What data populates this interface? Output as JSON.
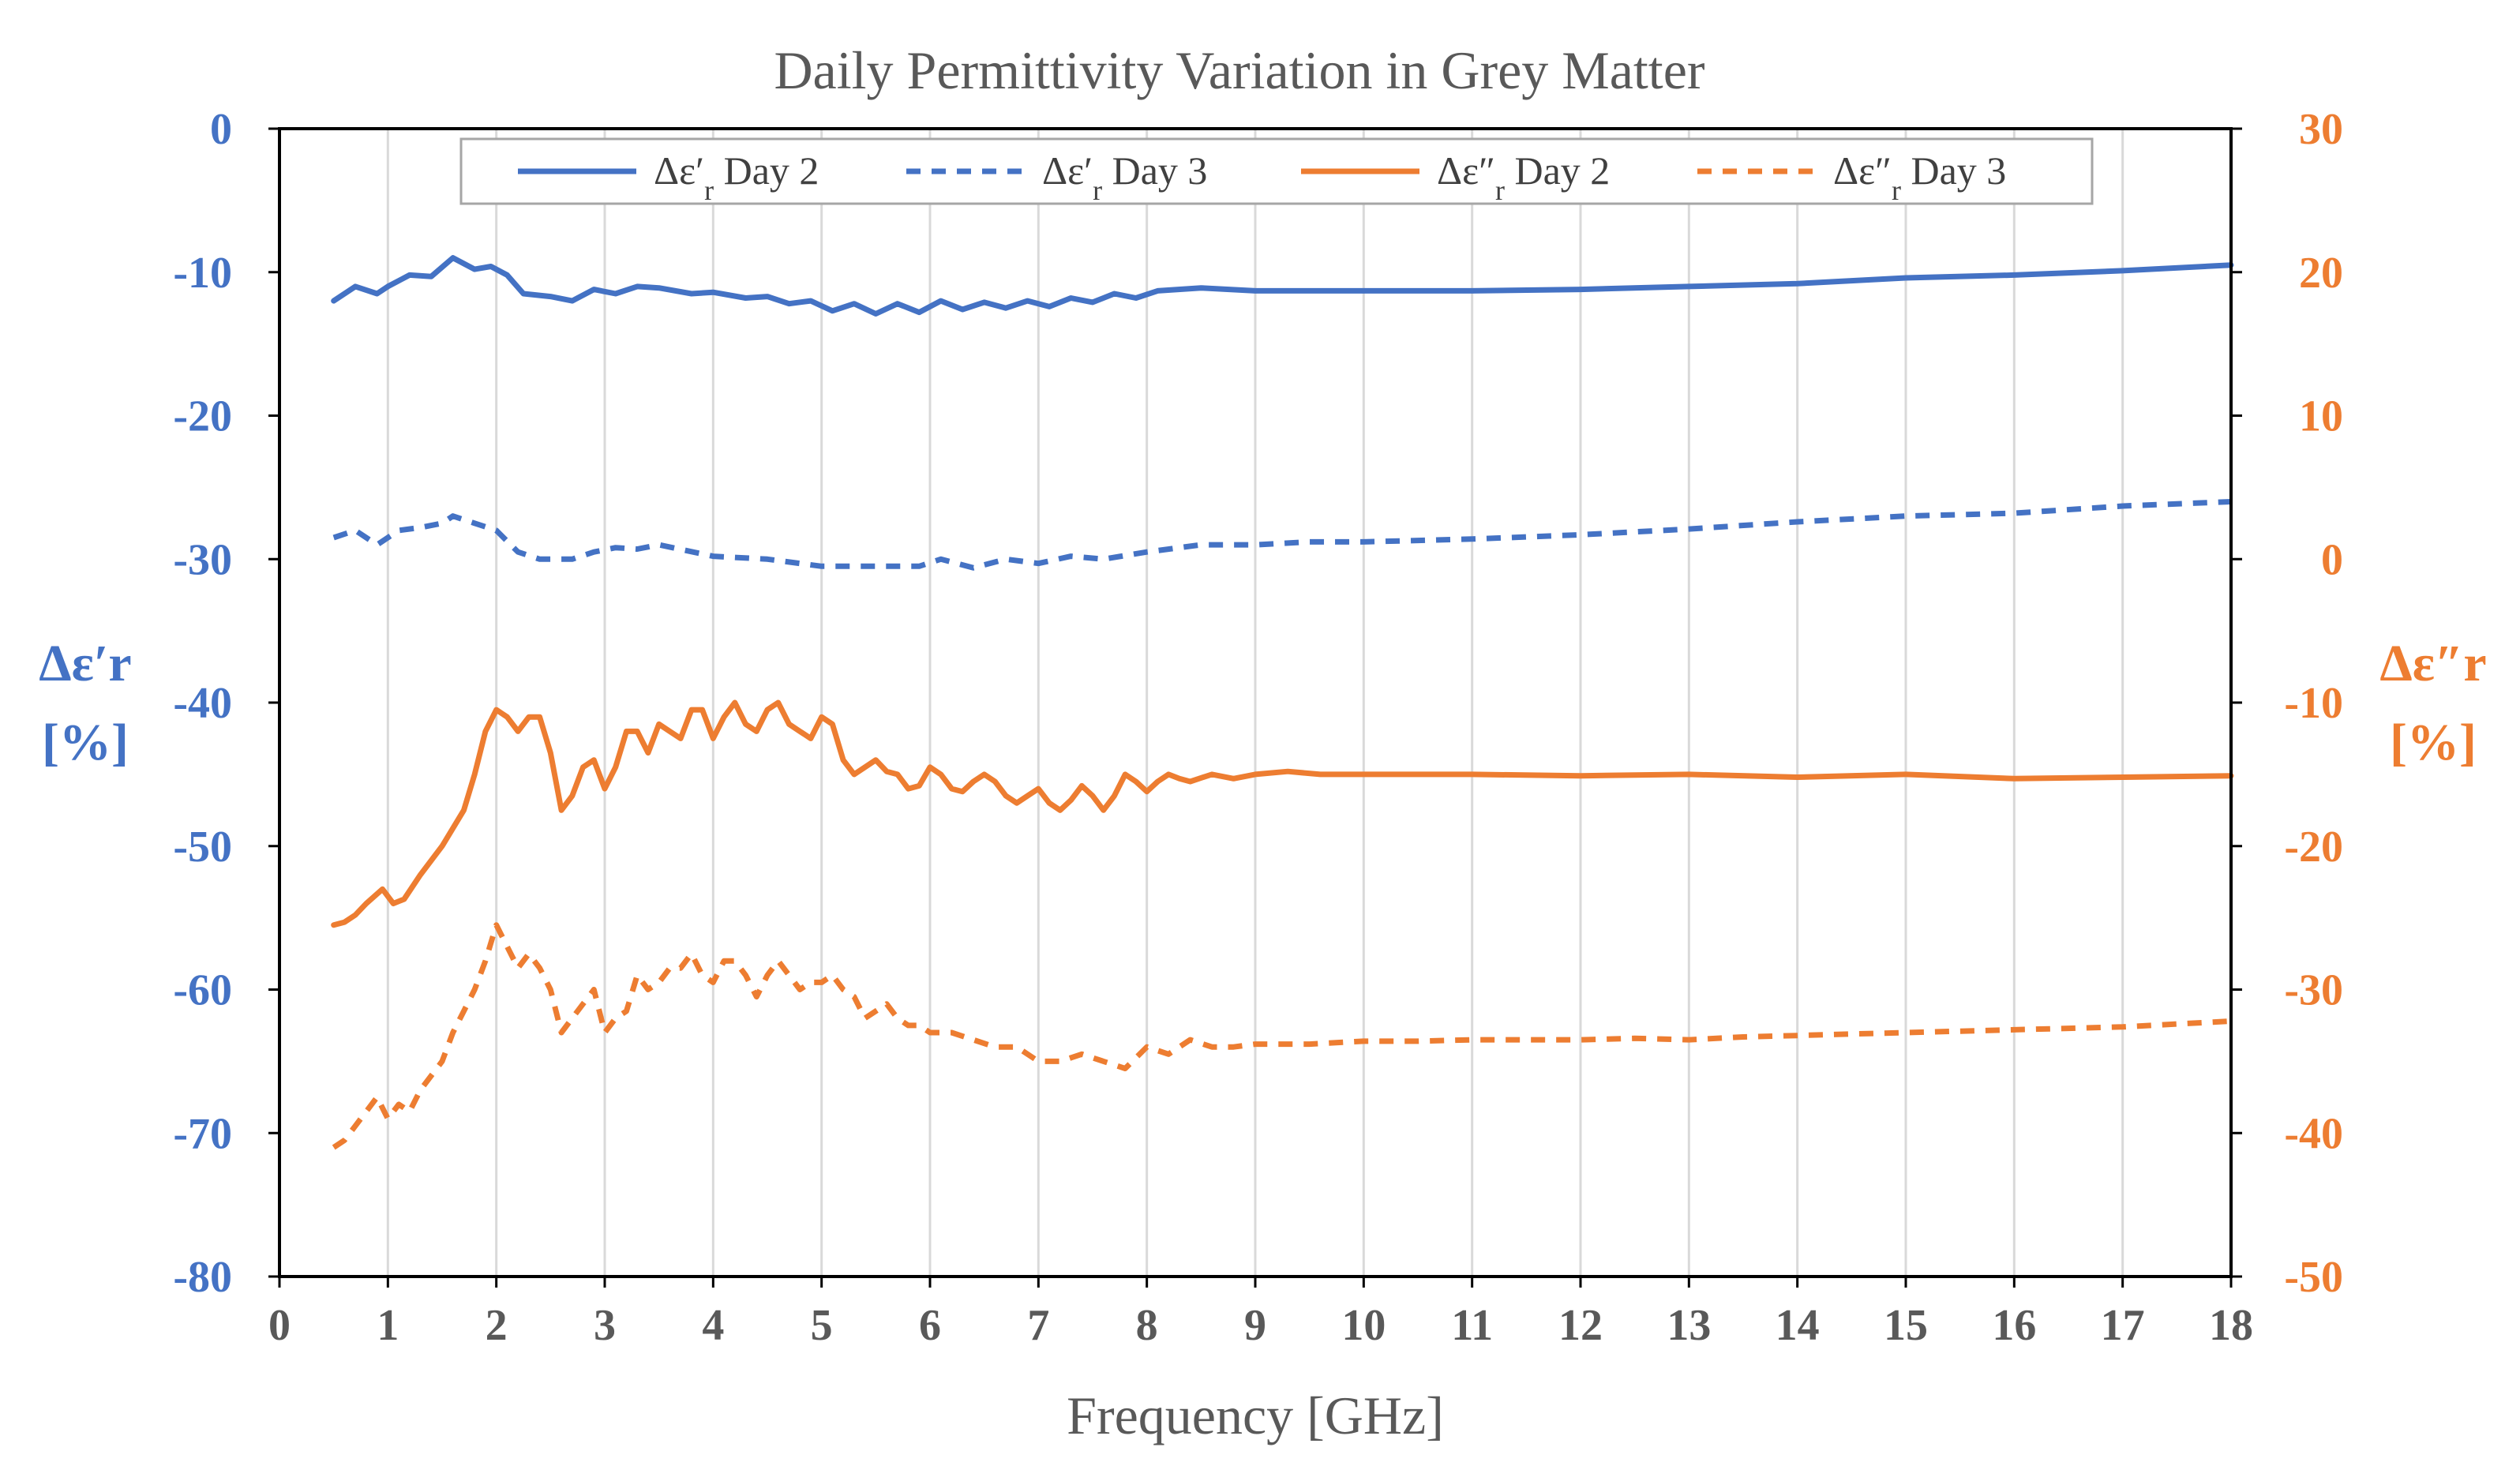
{
  "colors": {
    "blue": "#4472C4",
    "orange": "#ED7D31",
    "text": "#595959",
    "grid": "#D9D9D9"
  },
  "chart_data": {
    "type": "line",
    "title": "Daily Permittivity Variation in Grey Matter",
    "xlabel": "Frequency [GHz]",
    "ylabel_left": [
      "Δε′r",
      "[%]"
    ],
    "ylabel_right": [
      "Δε″r",
      "[%]"
    ],
    "xlim": [
      0,
      18
    ],
    "ylim_left": [
      -80,
      0
    ],
    "ylim_right": [
      -50,
      30
    ],
    "x_ticks": [
      "0",
      "1",
      "2",
      "3",
      "4",
      "5",
      "6",
      "7",
      "8",
      "9",
      "10",
      "11",
      "12",
      "13",
      "14",
      "15",
      "16",
      "17",
      "18"
    ],
    "y_left_ticks": [
      "0",
      "-10",
      "-20",
      "-30",
      "-40",
      "-50",
      "-60",
      "-70",
      "-80"
    ],
    "y_right_ticks": [
      "30",
      "20",
      "10",
      "0",
      "-10",
      "-20",
      "-30",
      "-40",
      "-50"
    ],
    "grid": "vertical",
    "legend_position": "top",
    "series": [
      {
        "name": "Δε′r Day 2",
        "axis": "left",
        "color": "#4472C4",
        "dash": false,
        "legend": {
          "main": "Δε′",
          "sub": "r",
          "tail": " Day 2"
        },
        "x": [
          0.5,
          0.7,
          0.9,
          1.0,
          1.2,
          1.4,
          1.6,
          1.8,
          1.95,
          2.1,
          2.25,
          2.5,
          2.7,
          2.9,
          3.1,
          3.3,
          3.5,
          3.8,
          4.0,
          4.3,
          4.5,
          4.7,
          4.9,
          5.1,
          5.3,
          5.5,
          5.7,
          5.9,
          6.1,
          6.3,
          6.5,
          6.7,
          6.9,
          7.1,
          7.3,
          7.5,
          7.7,
          7.9,
          8.1,
          8.5,
          9.0,
          9.5,
          10.0,
          11.0,
          12.0,
          13.0,
          14.0,
          15.0,
          16.0,
          17.0,
          18.0
        ],
        "y": [
          -12.0,
          -11.0,
          -11.5,
          -11.0,
          -10.2,
          -10.3,
          -9.0,
          -9.8,
          -9.6,
          -10.2,
          -11.5,
          -11.7,
          -12.0,
          -11.2,
          -11.5,
          -11.0,
          -11.1,
          -11.5,
          -11.4,
          -11.8,
          -11.7,
          -12.2,
          -12.0,
          -12.7,
          -12.2,
          -12.9,
          -12.2,
          -12.8,
          -12.0,
          -12.6,
          -12.1,
          -12.5,
          -12.0,
          -12.4,
          -11.8,
          -12.1,
          -11.5,
          -11.8,
          -11.3,
          -11.1,
          -11.3,
          -11.3,
          -11.3,
          -11.3,
          -11.2,
          -11.0,
          -10.8,
          -10.4,
          -10.2,
          -9.9,
          -9.5
        ]
      },
      {
        "name": "Δε′r  Day 3",
        "axis": "left",
        "color": "#4472C4",
        "dash": true,
        "legend": {
          "main": "Δε′",
          "sub": "r",
          "tail": "  Day 3"
        },
        "x": [
          0.5,
          0.7,
          0.9,
          1.1,
          1.3,
          1.5,
          1.6,
          1.8,
          2.0,
          2.2,
          2.4,
          2.7,
          2.9,
          3.1,
          3.3,
          3.5,
          4.0,
          4.5,
          5.0,
          5.3,
          5.6,
          5.9,
          6.1,
          6.4,
          6.7,
          7.0,
          7.3,
          7.6,
          8.0,
          8.5,
          9.0,
          9.5,
          10.0,
          11.0,
          12.0,
          13.0,
          14.0,
          15.0,
          16.0,
          17.0,
          18.0
        ],
        "y": [
          -28.5,
          -28.0,
          -29.0,
          -28.0,
          -27.8,
          -27.5,
          -27.0,
          -27.5,
          -28.0,
          -29.5,
          -30.0,
          -30.0,
          -29.5,
          -29.2,
          -29.3,
          -29.0,
          -29.8,
          -30.0,
          -30.5,
          -30.5,
          -30.5,
          -30.5,
          -30.0,
          -30.6,
          -30.0,
          -30.3,
          -29.8,
          -30.0,
          -29.5,
          -29.0,
          -29.0,
          -28.8,
          -28.8,
          -28.6,
          -28.3,
          -27.9,
          -27.4,
          -27.0,
          -26.8,
          -26.3,
          -26.0
        ]
      },
      {
        "name": "Δε″r Day 2",
        "axis": "right",
        "color": "#ED7D31",
        "dash": false,
        "legend": {
          "main": "Δε″",
          "sub": "r",
          "tail": " Day 2"
        },
        "x": [
          0.5,
          0.6,
          0.7,
          0.8,
          0.95,
          1.05,
          1.15,
          1.3,
          1.5,
          1.7,
          1.8,
          1.9,
          2.0,
          2.1,
          2.2,
          2.3,
          2.4,
          2.5,
          2.6,
          2.7,
          2.8,
          2.9,
          3.0,
          3.1,
          3.2,
          3.3,
          3.4,
          3.5,
          3.6,
          3.7,
          3.8,
          3.9,
          4.0,
          4.1,
          4.2,
          4.3,
          4.4,
          4.5,
          4.6,
          4.7,
          4.8,
          4.9,
          5.0,
          5.1,
          5.2,
          5.3,
          5.4,
          5.5,
          5.6,
          5.7,
          5.8,
          5.9,
          6.0,
          6.1,
          6.2,
          6.3,
          6.4,
          6.5,
          6.6,
          6.7,
          6.8,
          6.9,
          7.0,
          7.1,
          7.2,
          7.3,
          7.4,
          7.5,
          7.6,
          7.7,
          7.8,
          7.9,
          8.0,
          8.1,
          8.2,
          8.3,
          8.4,
          8.6,
          8.8,
          9.0,
          9.3,
          9.6,
          10.0,
          11.0,
          12.0,
          13.0,
          14.0,
          15.0,
          16.0,
          17.0,
          18.0
        ],
        "y": [
          -25.5,
          -25.3,
          -24.8,
          -24.0,
          -23.0,
          -24.0,
          -23.7,
          -22.0,
          -20.0,
          -17.5,
          -15.0,
          -12.0,
          -10.5,
          -11.0,
          -12.0,
          -11.0,
          -11.0,
          -13.5,
          -17.5,
          -16.5,
          -14.5,
          -14.0,
          -16.0,
          -14.5,
          -12.0,
          -12.0,
          -13.5,
          -11.5,
          -12.0,
          -12.5,
          -10.5,
          -10.5,
          -12.5,
          -11.0,
          -10.0,
          -11.5,
          -12.0,
          -10.5,
          -10.0,
          -11.5,
          -12.0,
          -12.5,
          -11.0,
          -11.5,
          -14.0,
          -15.0,
          -14.5,
          -14.0,
          -14.8,
          -15.0,
          -16.0,
          -15.8,
          -14.5,
          -15.0,
          -16.0,
          -16.2,
          -15.5,
          -15.0,
          -15.5,
          -16.5,
          -17.0,
          -16.5,
          -16.0,
          -17.0,
          -17.5,
          -16.8,
          -15.8,
          -16.5,
          -17.5,
          -16.5,
          -15.0,
          -15.5,
          -16.2,
          -15.5,
          -15.0,
          -15.3,
          -15.5,
          -15.0,
          -15.3,
          -15.0,
          -14.8,
          -15.0,
          -15.0,
          -15.0,
          -15.1,
          -15.0,
          -15.2,
          -15.0,
          -15.3,
          -15.2,
          -15.1
        ]
      },
      {
        "name": "Δε″r  Day 3",
        "axis": "right",
        "color": "#ED7D31",
        "dash": true,
        "legend": {
          "main": "Δε″",
          "sub": "r",
          "tail": "  Day 3"
        },
        "x": [
          0.5,
          0.6,
          0.7,
          0.8,
          0.9,
          1.0,
          1.1,
          1.2,
          1.3,
          1.4,
          1.5,
          1.6,
          1.7,
          1.8,
          1.9,
          2.0,
          2.1,
          2.2,
          2.3,
          2.4,
          2.5,
          2.6,
          2.7,
          2.8,
          2.9,
          3.0,
          3.1,
          3.2,
          3.3,
          3.4,
          3.5,
          3.6,
          3.7,
          3.8,
          3.9,
          4.0,
          4.1,
          4.2,
          4.3,
          4.4,
          4.5,
          4.6,
          4.7,
          4.8,
          4.9,
          5.0,
          5.1,
          5.2,
          5.3,
          5.4,
          5.5,
          5.6,
          5.7,
          5.8,
          5.9,
          6.0,
          6.2,
          6.4,
          6.6,
          6.8,
          7.0,
          7.2,
          7.4,
          7.6,
          7.8,
          8.0,
          8.2,
          8.4,
          8.6,
          8.8,
          9.0,
          9.5,
          10.0,
          10.5,
          11.0,
          11.5,
          12.0,
          12.5,
          13.0,
          13.5,
          14.0,
          14.5,
          15.0,
          15.5,
          16.0,
          16.5,
          17.0,
          17.5,
          18.0
        ],
        "y": [
          -41.0,
          -40.5,
          -39.5,
          -38.5,
          -37.5,
          -39.0,
          -38.0,
          -38.5,
          -37.0,
          -36.0,
          -35.0,
          -33.0,
          -31.5,
          -30.0,
          -28.0,
          -25.5,
          -27.0,
          -28.5,
          -27.5,
          -28.5,
          -30.0,
          -33.0,
          -32.0,
          -31.0,
          -30.0,
          -33.0,
          -32.0,
          -31.5,
          -29.0,
          -30.0,
          -29.5,
          -28.5,
          -28.5,
          -27.5,
          -29.0,
          -29.5,
          -28.0,
          -28.0,
          -29.0,
          -30.5,
          -29.0,
          -28.0,
          -29.0,
          -30.0,
          -29.5,
          -29.5,
          -29.0,
          -30.0,
          -30.5,
          -32.0,
          -31.5,
          -31.0,
          -32.0,
          -32.5,
          -32.5,
          -33.0,
          -33.0,
          -33.5,
          -34.0,
          -34.0,
          -35.0,
          -35.0,
          -34.5,
          -35.0,
          -35.5,
          -34.0,
          -34.5,
          -33.5,
          -34.0,
          -34.0,
          -33.8,
          -33.8,
          -33.6,
          -33.6,
          -33.5,
          -33.5,
          -33.5,
          -33.4,
          -33.5,
          -33.3,
          -33.2,
          -33.1,
          -33.0,
          -32.9,
          -32.8,
          -32.7,
          -32.6,
          -32.4,
          -32.2
        ]
      }
    ]
  }
}
